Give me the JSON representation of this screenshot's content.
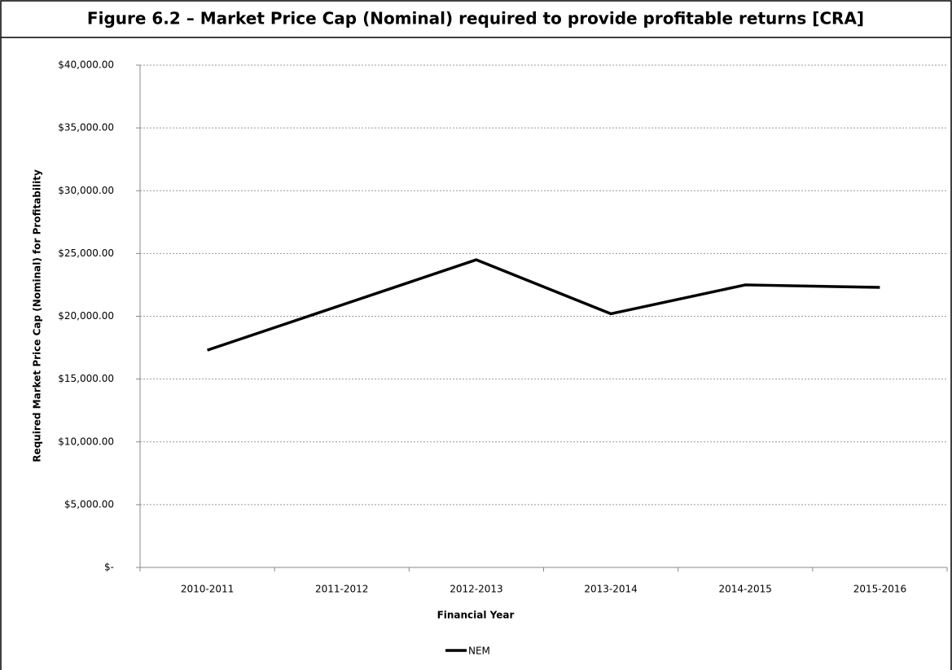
{
  "chart_data": {
    "type": "line",
    "title": "Figure 6.2 – Market Price Cap (Nominal) required to provide profitable returns [CRA]",
    "x_label": "Financial Year",
    "y_label": "Required Market Price Cap (Nominal) for Profitability",
    "categories": [
      "2010-2011",
      "2011-2012",
      "2012-2013",
      "2013-2014",
      "2014-2015",
      "2015-2016"
    ],
    "series": [
      {
        "name": "NEM",
        "color": "#000000",
        "values": [
          17300,
          20900,
          24500,
          20200,
          22500,
          22300
        ]
      }
    ],
    "ylim": [
      0,
      40000
    ],
    "yticks": [
      {
        "value": 0,
        "label": "$-"
      },
      {
        "value": 5000,
        "label": "$5,000.00"
      },
      {
        "value": 10000,
        "label": "$10,000.00"
      },
      {
        "value": 15000,
        "label": "$15,000.00"
      },
      {
        "value": 20000,
        "label": "$20,000.00"
      },
      {
        "value": 25000,
        "label": "$25,000.00"
      },
      {
        "value": 30000,
        "label": "$30,000.00"
      },
      {
        "value": 35000,
        "label": "$35,000.00"
      },
      {
        "value": 40000,
        "label": "$40,000.00"
      }
    ],
    "grid": true,
    "legend": "bottom"
  }
}
